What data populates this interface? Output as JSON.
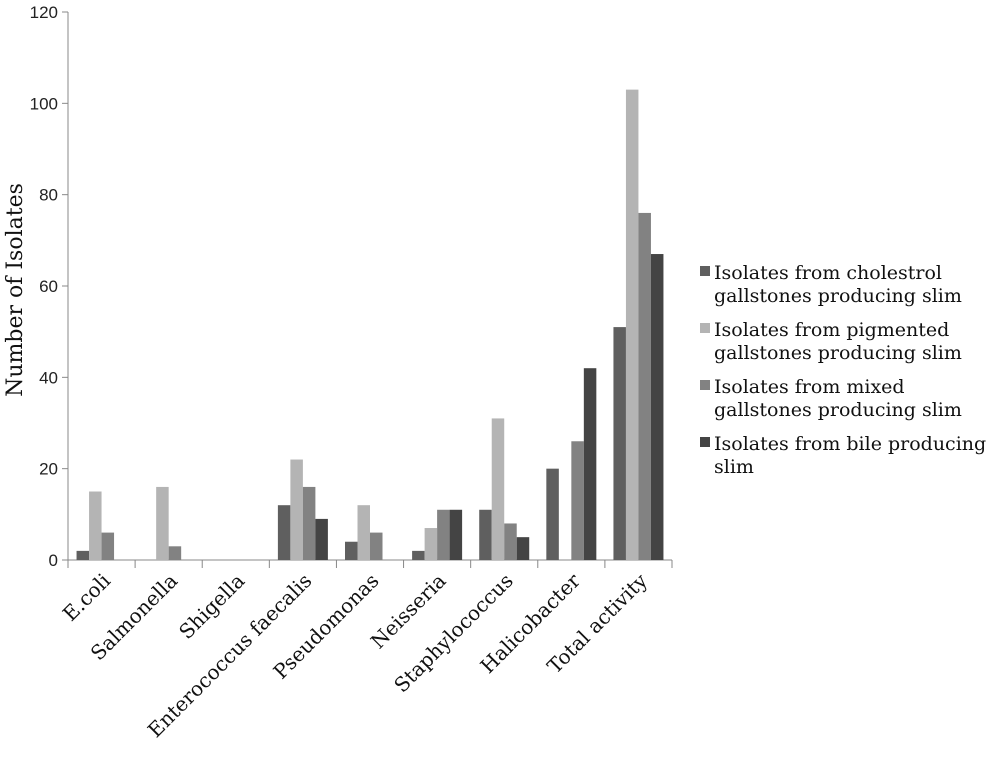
{
  "chart_data": {
    "type": "bar",
    "title": "",
    "xlabel": "",
    "ylabel": "Number of Isolates",
    "ylim": [
      0,
      120
    ],
    "yticks": [
      0,
      20,
      40,
      60,
      80,
      100,
      120
    ],
    "grid": false,
    "legend_position": "right",
    "categories": [
      "E.coli",
      "Salmonella",
      "Shigella",
      "Enterococcus faecalis",
      "Pseudomonas",
      "Neisseria",
      "Staphylococcus",
      "Halicobacter",
      "Total activity"
    ],
    "series": [
      {
        "name": "Isolates from cholestrol gallstones producing slim",
        "color": "#5f5f5f",
        "values": [
          2,
          0,
          0,
          12,
          4,
          2,
          11,
          20,
          51
        ]
      },
      {
        "name": "Isolates from pigmented gallstones producing slim",
        "color": "#b4b4b4",
        "values": [
          15,
          16,
          0,
          22,
          12,
          7,
          31,
          0,
          103
        ]
      },
      {
        "name": "Isolates from mixed gallstones producing slim",
        "color": "#828282",
        "values": [
          6,
          3,
          0,
          16,
          6,
          11,
          8,
          26,
          76
        ]
      },
      {
        "name": "Isolates from bile producing slim",
        "color": "#444444",
        "values": [
          0,
          0,
          0,
          9,
          0,
          11,
          5,
          42,
          67
        ]
      }
    ],
    "legend": [
      {
        "lines": [
          "Isolates from cholestrol",
          "gallstones producing slim"
        ]
      },
      {
        "lines": [
          "Isolates from pigmented",
          "gallstones producing slim"
        ]
      },
      {
        "lines": [
          "Isolates from mixed",
          "gallstones producing slim"
        ]
      },
      {
        "lines": [
          "Isolates from bile producing",
          "slim"
        ]
      }
    ]
  }
}
